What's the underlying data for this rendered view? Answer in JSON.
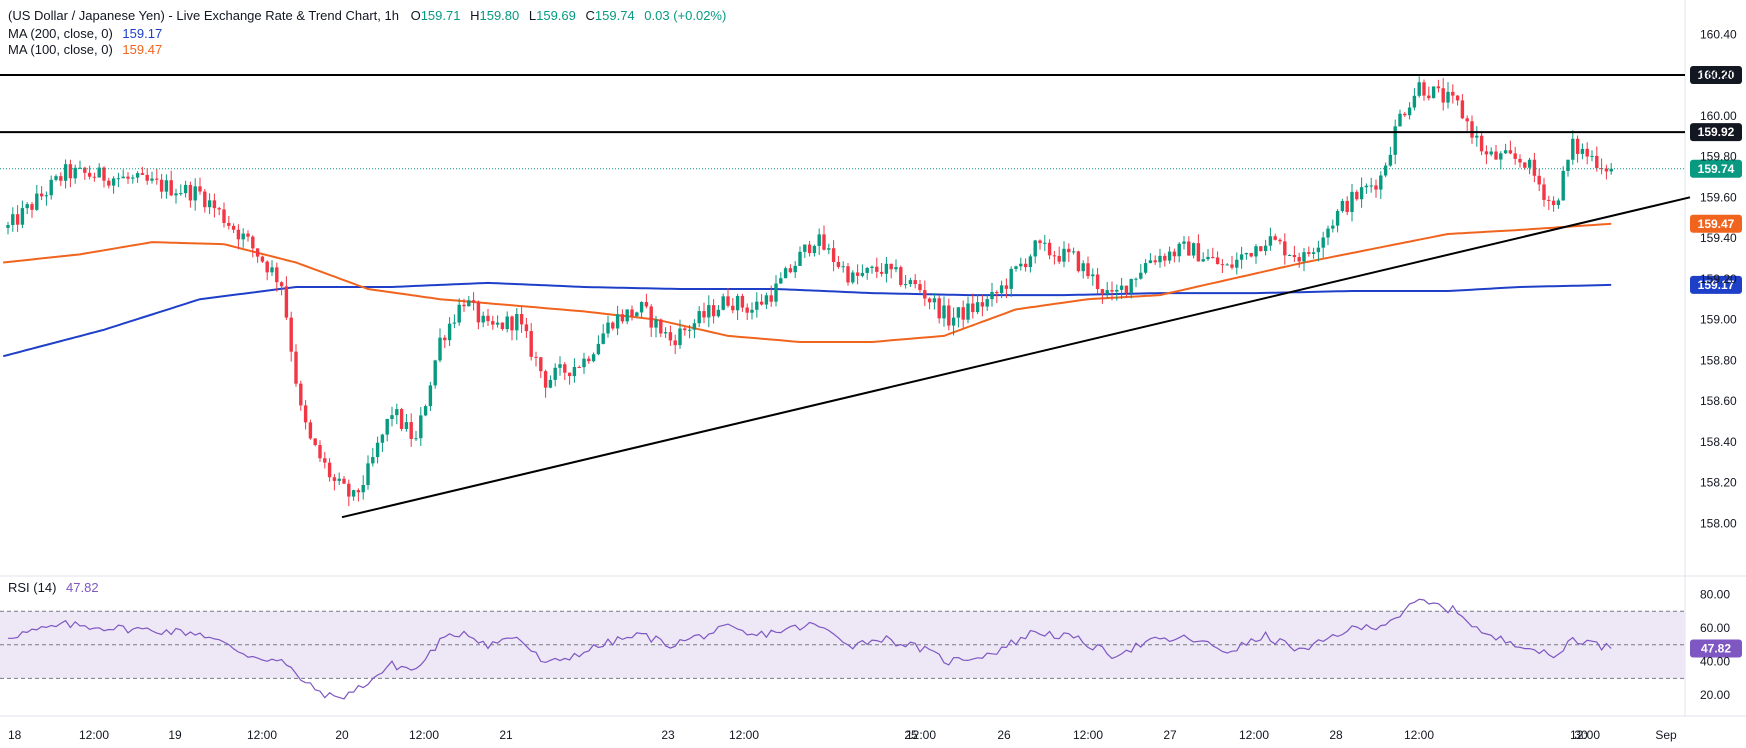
{
  "header": {
    "symbol_title": "(US Dollar / Japanese Yen) - Live Exchange Rate & Trend Chart, 1h",
    "ohlc": {
      "o_label": "O",
      "o_value": "159.71",
      "h_label": "H",
      "h_value": "159.80",
      "l_label": "L",
      "l_value": "159.69",
      "c_label": "C",
      "c_value": "159.74",
      "change": "0.03 (+0.02%)"
    },
    "ma200_label": "MA (200, close, 0)",
    "ma200_value": "159.17",
    "ma100_label": "MA (100, close, 0)",
    "ma100_value": "159.47",
    "rsi_label": "RSI (14)",
    "rsi_value": "47.82"
  },
  "colors": {
    "up": "#089981",
    "down": "#f23645",
    "ma200": "#1e40c8",
    "ma100": "#f0641e",
    "rsi": "#7e57c2",
    "rsi_band": "#ede7f6",
    "current_price": "#089981",
    "level_lines": "#000000"
  },
  "chart_data": [
    {
      "type": "candlestick",
      "title": "",
      "ylim": [
        157.82,
        160.48
      ],
      "y_ticks": [
        "160.40",
        "160.20",
        "160.00",
        "159.80",
        "159.60",
        "159.40",
        "159.20",
        "159.00",
        "158.80",
        "158.60",
        "158.40",
        "158.20",
        "158.00"
      ],
      "x_ticks": [
        "18",
        "12:00",
        "19",
        "12:00",
        "20",
        "12:00",
        "21",
        "23",
        "12:00",
        "25",
        "12:00",
        "26",
        "12:00",
        "27",
        "12:00",
        "28",
        "12:00",
        "30",
        "12:00",
        "Sep"
      ],
      "horizontal_levels": [
        160.2,
        159.92
      ],
      "current_price": 159.74,
      "ma200_last": 159.17,
      "ma100_last": 159.47,
      "trendline": {
        "from": {
          "bar": 0,
          "price": 158.03
        },
        "to": {
          "bar": 150,
          "price": 159.6
        }
      },
      "anchors": [
        [
          0,
          159.45
        ],
        [
          12,
          159.72
        ],
        [
          22,
          159.7
        ],
        [
          40,
          159.62
        ],
        [
          50,
          159.38
        ],
        [
          57,
          159.18
        ],
        [
          61,
          158.55
        ],
        [
          63,
          158.4
        ],
        [
          68,
          158.2
        ],
        [
          72,
          158.12
        ],
        [
          75,
          158.25
        ],
        [
          80,
          158.55
        ],
        [
          85,
          158.4
        ],
        [
          90,
          158.9
        ],
        [
          95,
          159.1
        ],
        [
          100,
          158.95
        ],
        [
          106,
          159.0
        ],
        [
          112,
          158.7
        ],
        [
          120,
          158.8
        ],
        [
          126,
          159.0
        ],
        [
          132,
          159.05
        ],
        [
          138,
          158.9
        ],
        [
          144,
          159.0
        ],
        [
          150,
          159.1
        ],
        [
          155,
          159.05
        ],
        [
          160,
          159.15
        ],
        [
          168,
          159.4
        ],
        [
          176,
          159.2
        ],
        [
          182,
          159.25
        ],
        [
          190,
          159.15
        ],
        [
          196,
          159.0
        ],
        [
          205,
          159.1
        ],
        [
          214,
          159.35
        ],
        [
          222,
          159.3
        ],
        [
          230,
          159.1
        ],
        [
          238,
          159.3
        ],
        [
          246,
          159.35
        ],
        [
          254,
          159.25
        ],
        [
          262,
          159.4
        ],
        [
          270,
          159.3
        ],
        [
          278,
          159.55
        ],
        [
          286,
          159.7
        ],
        [
          290,
          160.0
        ],
        [
          294,
          160.15
        ],
        [
          302,
          160.05
        ],
        [
          308,
          159.8
        ],
        [
          316,
          159.78
        ],
        [
          322,
          159.55
        ],
        [
          326,
          159.85
        ],
        [
          334,
          159.74
        ]
      ],
      "ma200_anchors": [
        [
          -1,
          158.82
        ],
        [
          20,
          158.95
        ],
        [
          40,
          159.1
        ],
        [
          60,
          159.16
        ],
        [
          80,
          159.16
        ],
        [
          100,
          159.18
        ],
        [
          120,
          159.16
        ],
        [
          140,
          159.15
        ],
        [
          160,
          159.15
        ],
        [
          180,
          159.13
        ],
        [
          200,
          159.12
        ],
        [
          220,
          159.12
        ],
        [
          240,
          159.13
        ],
        [
          260,
          159.13
        ],
        [
          280,
          159.14
        ],
        [
          300,
          159.14
        ],
        [
          315,
          159.16
        ],
        [
          334,
          159.17
        ]
      ],
      "ma100_anchors": [
        [
          -1,
          159.28
        ],
        [
          15,
          159.32
        ],
        [
          30,
          159.38
        ],
        [
          45,
          159.37
        ],
        [
          60,
          159.28
        ],
        [
          75,
          159.15
        ],
        [
          90,
          159.1
        ],
        [
          105,
          159.07
        ],
        [
          120,
          159.04
        ],
        [
          135,
          159.0
        ],
        [
          150,
          158.92
        ],
        [
          165,
          158.89
        ],
        [
          180,
          158.89
        ],
        [
          195,
          158.92
        ],
        [
          210,
          159.05
        ],
        [
          225,
          159.1
        ],
        [
          240,
          159.12
        ],
        [
          255,
          159.2
        ],
        [
          270,
          159.28
        ],
        [
          285,
          159.35
        ],
        [
          300,
          159.42
        ],
        [
          315,
          159.44
        ],
        [
          334,
          159.47
        ]
      ]
    },
    {
      "type": "line",
      "name": "RSI (14)",
      "ylim": [
        10,
        85
      ],
      "y_ticks": [
        "80.00",
        "60.00",
        "40.00",
        "20.00"
      ],
      "band": [
        30,
        70
      ],
      "midline": 50,
      "current": 47.82,
      "anchors": [
        [
          0,
          55
        ],
        [
          12,
          62
        ],
        [
          22,
          60
        ],
        [
          40,
          57
        ],
        [
          50,
          44
        ],
        [
          57,
          40
        ],
        [
          63,
          25
        ],
        [
          68,
          18
        ],
        [
          72,
          22
        ],
        [
          80,
          38
        ],
        [
          85,
          35
        ],
        [
          90,
          52
        ],
        [
          95,
          58
        ],
        [
          100,
          50
        ],
        [
          106,
          55
        ],
        [
          112,
          38
        ],
        [
          120,
          46
        ],
        [
          126,
          52
        ],
        [
          132,
          56
        ],
        [
          138,
          50
        ],
        [
          144,
          55
        ],
        [
          150,
          60
        ],
        [
          155,
          55
        ],
        [
          160,
          58
        ],
        [
          168,
          62
        ],
        [
          176,
          50
        ],
        [
          182,
          54
        ],
        [
          190,
          48
        ],
        [
          196,
          40
        ],
        [
          205,
          45
        ],
        [
          214,
          58
        ],
        [
          222,
          54
        ],
        [
          230,
          44
        ],
        [
          238,
          52
        ],
        [
          246,
          54
        ],
        [
          254,
          46
        ],
        [
          262,
          55
        ],
        [
          270,
          46
        ],
        [
          278,
          58
        ],
        [
          286,
          62
        ],
        [
          290,
          68
        ],
        [
          294,
          76
        ],
        [
          302,
          70
        ],
        [
          308,
          55
        ],
        [
          316,
          50
        ],
        [
          322,
          42
        ],
        [
          326,
          54
        ],
        [
          334,
          47.82
        ]
      ]
    }
  ]
}
